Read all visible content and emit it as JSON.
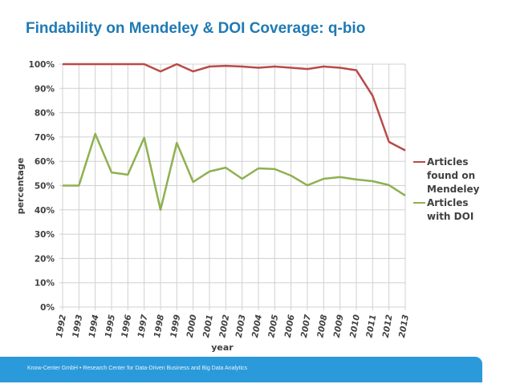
{
  "slide": {
    "title": "Findability on Mendeley & DOI Coverage: q-bio",
    "footer_text": "Know-Center GmbH • Research Center for Data-Driven Business and Big Data Analytics",
    "colors": {
      "title": "#1f7ab3",
      "footer_bg": "#2b9ada",
      "series_mendeley": "#b94a48",
      "series_doi": "#8fb050",
      "grid": "#d0d0d0"
    }
  },
  "chart_data": {
    "type": "line",
    "title": "",
    "xlabel": "year",
    "ylabel": "percentage",
    "x": [
      "1992",
      "1993",
      "1994",
      "1995",
      "1996",
      "1997",
      "1998",
      "1999",
      "2000",
      "2001",
      "2002",
      "2003",
      "2004",
      "2005",
      "2006",
      "2007",
      "2008",
      "2009",
      "2010",
      "2011",
      "2012",
      "2013"
    ],
    "ylim": [
      0,
      100
    ],
    "yticks": [
      "0%",
      "10%",
      "20%",
      "30%",
      "40%",
      "50%",
      "60%",
      "70%",
      "80%",
      "90%",
      "100%"
    ],
    "grid": true,
    "legend_position": "right",
    "series": [
      {
        "name": "Articles found on Mendeley",
        "legend_lines": [
          "Articles",
          "found on",
          "Mendeley"
        ],
        "color": "#b94a48",
        "values": [
          100,
          100,
          100,
          100,
          100,
          100,
          97,
          100,
          97,
          99,
          99.3,
          99,
          98.5,
          99,
          98.5,
          98,
          99,
          98.5,
          97.5,
          87,
          68,
          64.5
        ]
      },
      {
        "name": "Articles with DOI",
        "legend_lines": [
          "Articles",
          "with DOI"
        ],
        "color": "#8fb050",
        "values": [
          50,
          50,
          71.3,
          55.4,
          54.5,
          69.7,
          40,
          67.6,
          51.5,
          55.8,
          57.4,
          52.8,
          57.1,
          56.8,
          54.1,
          50.1,
          52.8,
          53.5,
          52.5,
          51.8,
          50.2,
          45.9
        ]
      }
    ]
  }
}
